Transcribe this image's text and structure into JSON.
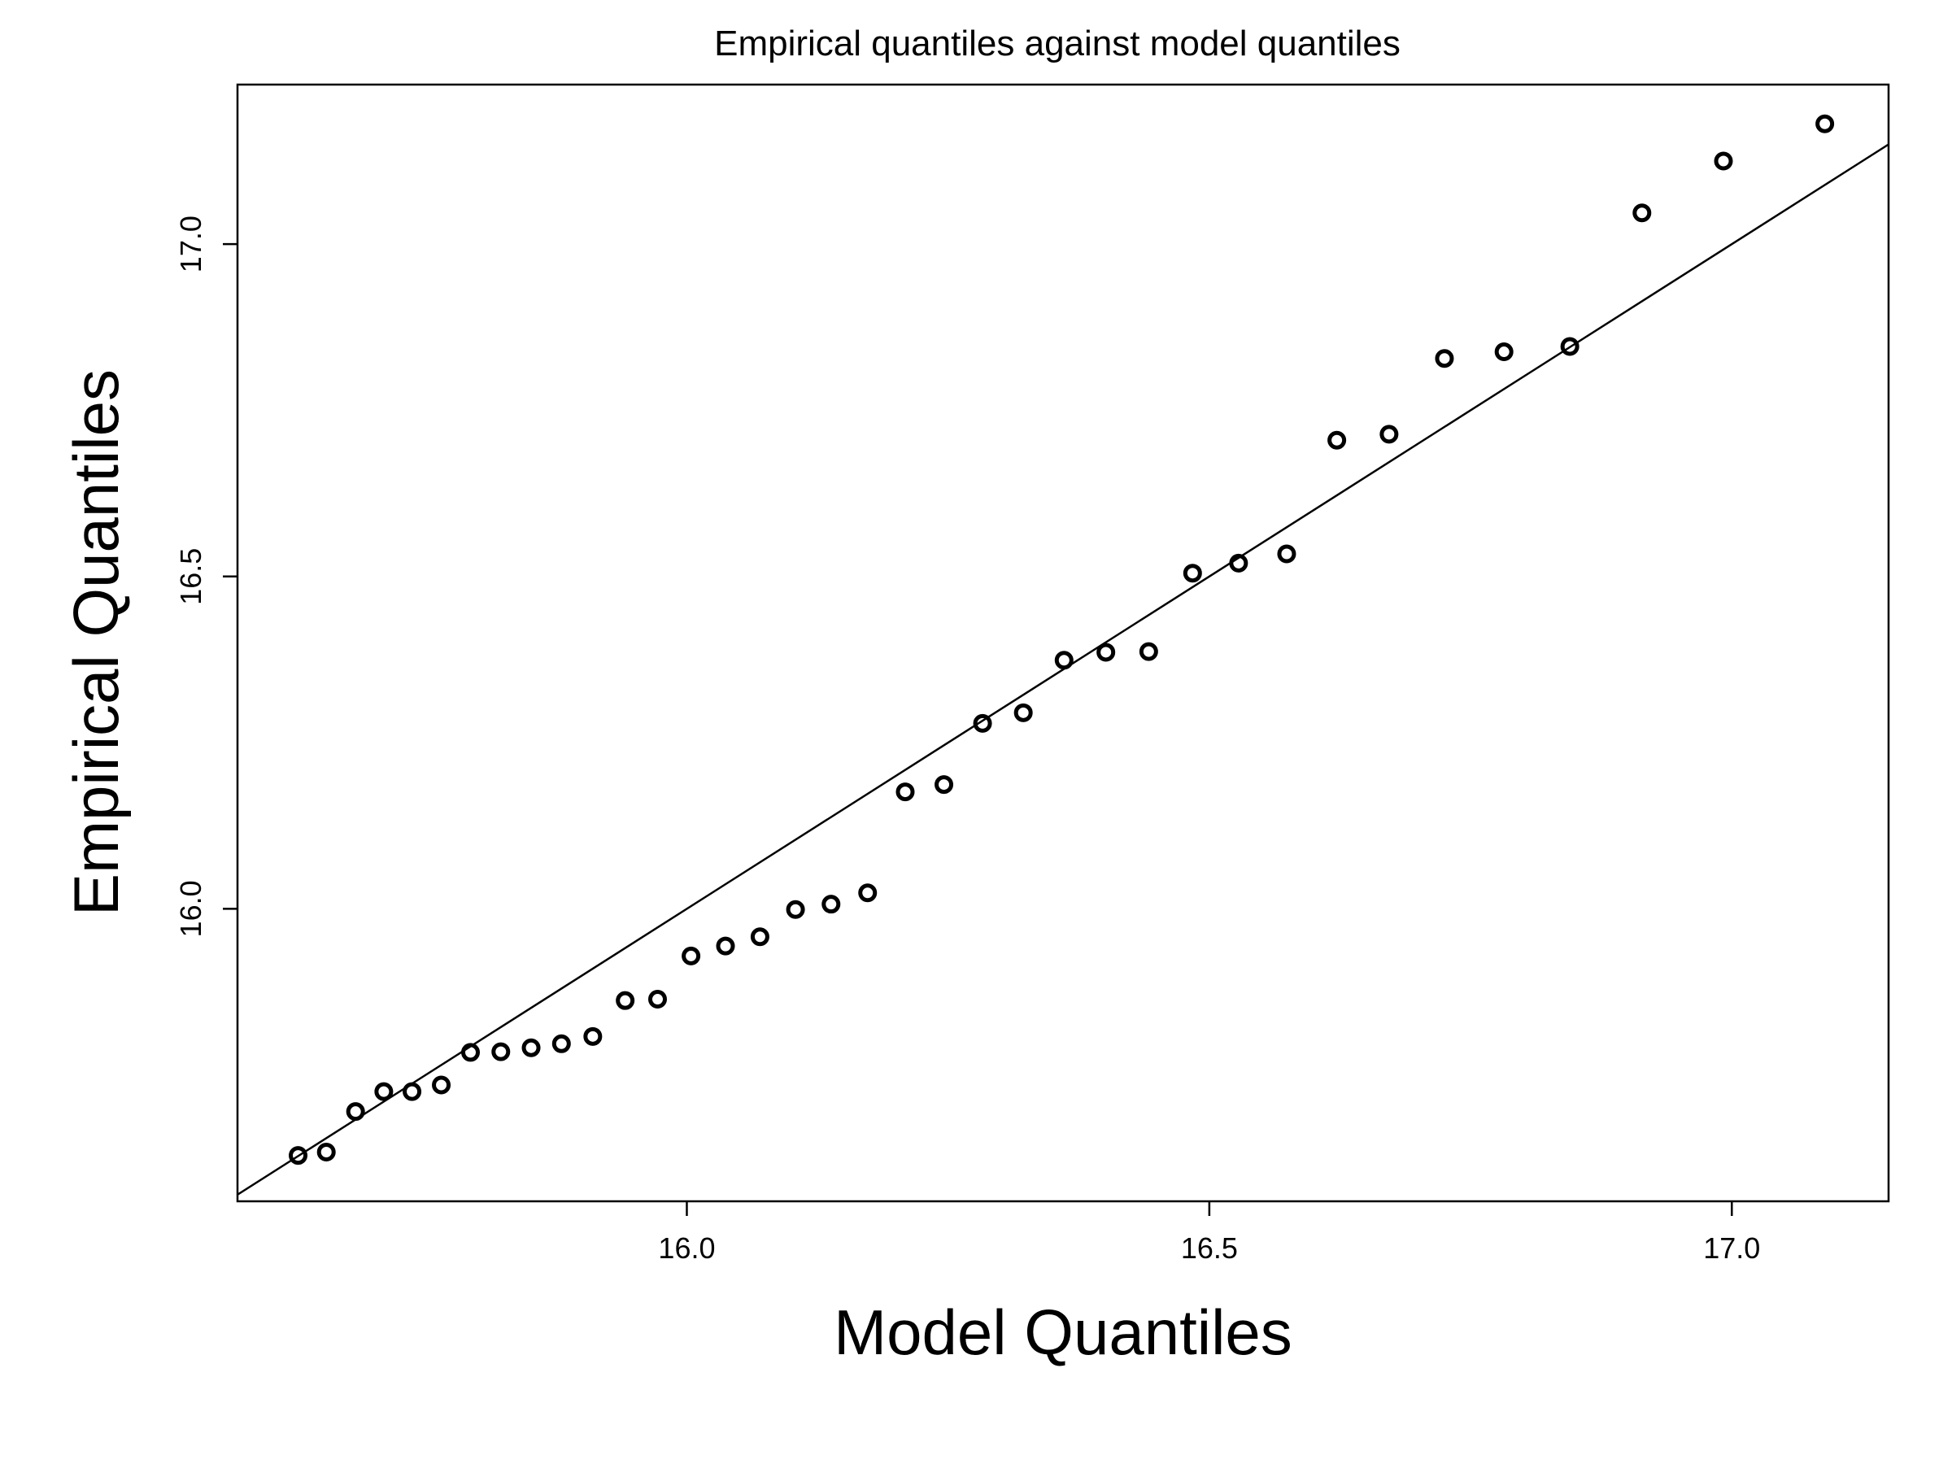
{
  "chart_data": {
    "type": "scatter",
    "title": "Empirical quantiles against model quantiles",
    "xlabel": "Model Quantiles",
    "ylabel": "Empirical Quantiles",
    "xlim": [
      15.57,
      17.15
    ],
    "ylim": [
      15.56,
      17.24
    ],
    "xticks": [
      16.0,
      16.5,
      17.0
    ],
    "yticks": [
      16.0,
      16.5,
      17.0
    ],
    "xtick_labels": [
      "16.0",
      "16.5",
      "17.0"
    ],
    "ytick_labels": [
      "16.0",
      "16.5",
      "17.0"
    ],
    "grid": false,
    "reference_line": {
      "slope": 1,
      "intercept": 0
    },
    "series": [
      {
        "x": [
          15.628,
          15.655,
          15.683,
          15.71,
          15.737,
          15.765,
          15.793,
          15.822,
          15.851,
          15.88,
          15.91,
          15.941,
          15.972,
          16.004,
          16.037,
          16.07,
          16.104,
          16.138,
          16.173,
          16.209,
          16.246,
          16.283,
          16.322,
          16.361,
          16.401,
          16.442,
          16.484,
          16.528,
          16.574,
          16.622,
          16.672,
          16.725,
          16.782,
          16.845,
          16.914,
          16.992,
          17.089
        ],
        "y": [
          15.629,
          15.634,
          15.695,
          15.725,
          15.725,
          15.735,
          15.784,
          15.785,
          15.791,
          15.797,
          15.808,
          15.862,
          15.864,
          15.929,
          15.944,
          15.958,
          15.999,
          16.007,
          16.024,
          16.176,
          16.187,
          16.279,
          16.295,
          16.374,
          16.386,
          16.387,
          16.505,
          16.52,
          16.534,
          16.705,
          16.714,
          16.828,
          16.838,
          16.846,
          17.047,
          17.125,
          17.181
        ]
      }
    ]
  }
}
